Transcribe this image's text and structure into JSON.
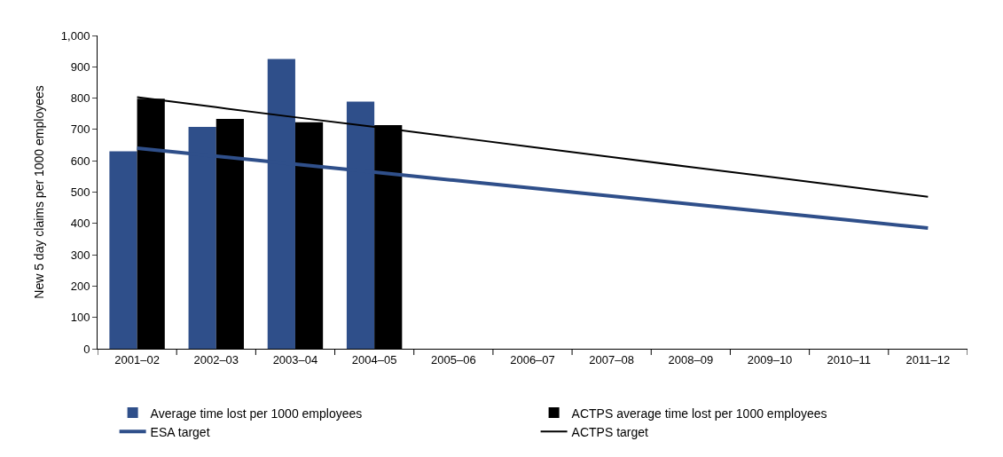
{
  "chart_data": {
    "type": "bar",
    "ylabel": "New 5 day claims per 1000 employees",
    "categories": [
      "2001–02",
      "2002–03",
      "2003–04",
      "2004–05",
      "2005–06",
      "2006–07",
      "2007–08",
      "2008–09",
      "2009–10",
      "2010–11",
      "2011–12"
    ],
    "series": [
      {
        "name": "Average time lost per 1000 employees",
        "color": "#2f4f8a",
        "values": [
          630,
          708,
          925,
          789,
          null,
          null,
          null,
          null,
          null,
          null,
          null
        ]
      },
      {
        "name": "ACTPS average time lost per 1000 employees",
        "color": "#000000",
        "values": [
          798,
          734,
          723,
          714,
          null,
          null,
          null,
          null,
          null,
          null,
          null
        ]
      },
      {
        "name": "ESA target",
        "type": "line",
        "color": "#2f4f8a",
        "values": [
          640,
          615,
          589,
          564,
          538,
          513,
          487,
          462,
          436,
          411,
          385
        ]
      },
      {
        "name": "ACTPS target",
        "type": "line",
        "color": "#000000",
        "values": [
          803,
          771,
          739,
          708,
          676,
          644,
          612,
          580,
          549,
          517,
          485
        ]
      }
    ],
    "ylim": [
      0,
      1000
    ],
    "yticks": [
      0,
      100,
      200,
      300,
      400,
      500,
      600,
      700,
      800,
      900,
      {
        "value": 1000,
        "label": "1,000"
      }
    ],
    "legend": "bottom",
    "marker": "none",
    "line_style": "solid"
  }
}
